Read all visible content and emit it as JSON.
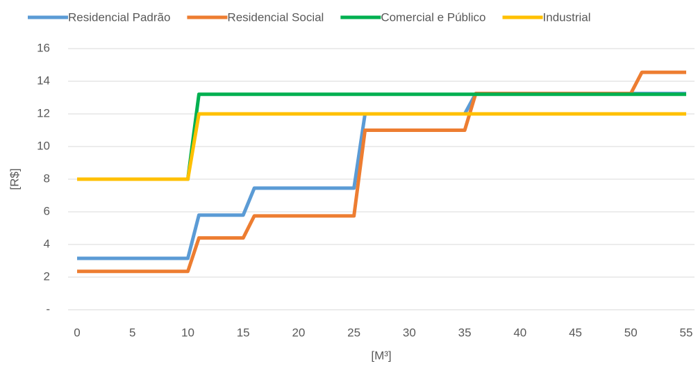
{
  "chart_data": {
    "type": "line",
    "x_label": "[M³]",
    "y_label": "[R$]",
    "xlim": [
      0,
      55
    ],
    "xticks": [
      0,
      5,
      10,
      15,
      20,
      25,
      30,
      35,
      40,
      45,
      50,
      55
    ],
    "ylim": [
      0,
      16
    ],
    "yticks": [
      {
        "value": 0,
        "label": "-"
      },
      2,
      4,
      6,
      8,
      10,
      12,
      14,
      16
    ],
    "grid": true,
    "legend": "top",
    "series": [
      {
        "name": "Residencial Padrão",
        "color": "#5b9bd5",
        "x": [
          0,
          10,
          11,
          15,
          16,
          25,
          26,
          35,
          36,
          55
        ],
        "values": [
          3.15,
          3.15,
          5.8,
          5.8,
          7.45,
          7.45,
          12,
          12,
          13.25,
          13.25
        ]
      },
      {
        "name": "Residencial Social",
        "color": "#ed7d31",
        "x": [
          0,
          10,
          11,
          15,
          16,
          25,
          26,
          35,
          36,
          50,
          51,
          55
        ],
        "values": [
          2.35,
          2.35,
          4.4,
          4.4,
          5.75,
          5.75,
          11,
          11,
          13.25,
          13.25,
          14.55,
          14.55
        ]
      },
      {
        "name": "Comercial e Público",
        "color": "#00b050",
        "x": [
          0,
          10,
          11,
          55
        ],
        "values": [
          8,
          8,
          13.2,
          13.2
        ]
      },
      {
        "name": "Industrial",
        "color": "#ffc000",
        "x": [
          0,
          10,
          11,
          55
        ],
        "values": [
          8,
          8,
          12,
          12
        ]
      }
    ]
  }
}
